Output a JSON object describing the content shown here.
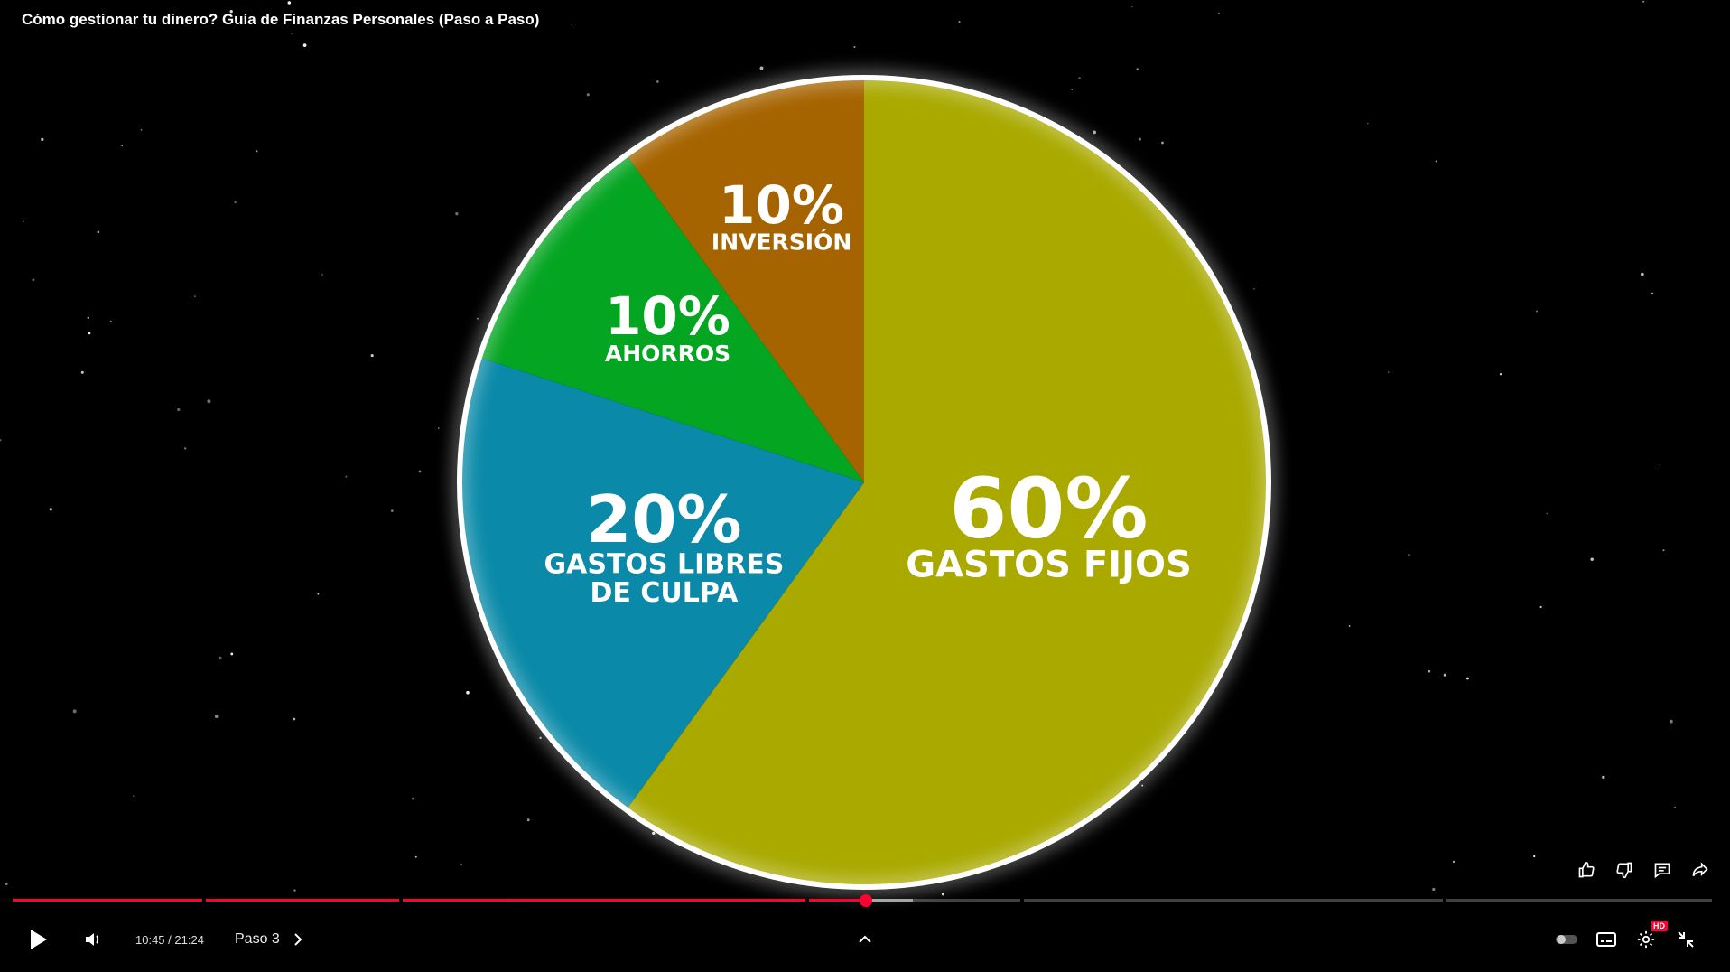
{
  "video": {
    "title": "Cómo gestionar tu dinero? Guía de Finanzas Personales (Paso a Paso)"
  },
  "chart_data": {
    "type": "pie",
    "start_angle_deg": 0,
    "direction": "clockwise",
    "slices": [
      {
        "percent_label": "60%",
        "name_lines": [
          "GASTOS FIJOS"
        ],
        "value": 60,
        "color": "#a9a900"
      },
      {
        "percent_label": "20%",
        "name_lines": [
          "GASTOS LIBRES",
          "DE CULPA"
        ],
        "value": 20,
        "color": "#0a8aa8"
      },
      {
        "percent_label": "10%",
        "name_lines": [
          "AHORROS"
        ],
        "value": 10,
        "color": "#04a521"
      },
      {
        "percent_label": "10%",
        "name_lines": [
          "INVERSIÓN"
        ],
        "value": 10,
        "color": "#a66400"
      }
    ],
    "border_color": "#ffffff"
  },
  "player": {
    "current_time": "10:45",
    "duration": "21:24",
    "time_separator": " / ",
    "chapter_label": "Paso 3",
    "hd_badge": "HD",
    "accent_color": "#ff0033",
    "played_fraction": 0.502,
    "buffered_fraction": 0.53
  },
  "icons": {
    "play": "play-icon",
    "volume": "volume-icon",
    "chapter_next": "chevron-right-icon",
    "expand": "chevron-up-icon",
    "autoplay": "autoplay-toggle-icon",
    "captions": "captions-icon",
    "settings": "gear-icon",
    "exit_fullscreen": "exit-fullscreen-icon",
    "like": "thumbs-up-icon",
    "dislike": "thumbs-down-icon",
    "comments": "comment-icon",
    "share": "share-icon"
  }
}
